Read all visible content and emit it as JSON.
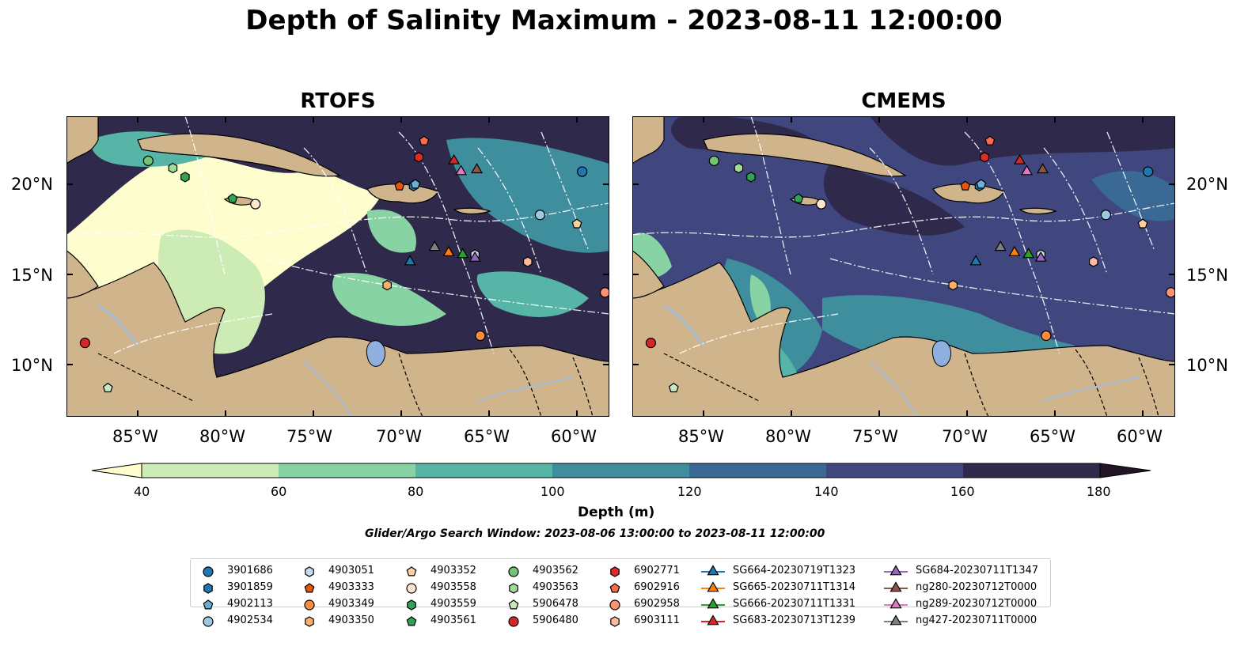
{
  "title": "Depth of Salinity Maximum - 2023-08-11 12:00:00",
  "panels": [
    {
      "title": "RTOFS",
      "model": "rtofs"
    },
    {
      "title": "CMEMS",
      "model": "cmems"
    }
  ],
  "lon_ticks": [
    "85°W",
    "80°W",
    "75°W",
    "70°W",
    "65°W",
    "60°W"
  ],
  "lat_ticks": [
    "20°N",
    "15°N",
    "10°N"
  ],
  "colorbar": {
    "label": "Depth (m)",
    "ticks": [
      "40",
      "60",
      "80",
      "100",
      "120",
      "140",
      "160",
      "180"
    ],
    "colors": [
      "#fdfdcd",
      "#cdebb4",
      "#88d3a4",
      "#56b5a6",
      "#3f8e9e",
      "#3b6995",
      "#40467e",
      "#2f2a4c",
      "#221626"
    ]
  },
  "search_window": "Glider/Argo Search Window: 2023-08-06 13:00:00 to 2023-08-11 12:00:00",
  "map_colors": {
    "land": "#d0b48c",
    "water_body": "#8fb0df",
    "river": "#a6bddb",
    "track": "#ffffff"
  },
  "legend": [
    {
      "label": "3901686",
      "marker": "circle",
      "color": "#1f77b4",
      "lon": -59.7,
      "lat": 20.7
    },
    {
      "label": "3901859",
      "marker": "hexagon",
      "color": "#1f77b4",
      "lon": -69.3,
      "lat": 19.9
    },
    {
      "label": "4902113",
      "marker": "pentagon",
      "color": "#6baed6",
      "lon": -69.2,
      "lat": 20.0
    },
    {
      "label": "4902534",
      "marker": "circle",
      "color": "#9ecae1",
      "lon": -62.1,
      "lat": 18.3
    },
    {
      "label": "4903051",
      "marker": "hexagon",
      "color": "#c6dbef",
      "lon": -65.8,
      "lat": 16.1
    },
    {
      "label": "4903333",
      "marker": "pentagon",
      "color": "#e6550d",
      "lon": -70.1,
      "lat": 19.9
    },
    {
      "label": "4903349",
      "marker": "circle",
      "color": "#fd8d3c",
      "lon": -65.5,
      "lat": 11.6
    },
    {
      "label": "4903350",
      "marker": "hexagon",
      "color": "#fdae6b",
      "lon": -70.8,
      "lat": 14.4
    },
    {
      "label": "4903352",
      "marker": "pentagon",
      "color": "#fdd0a2",
      "lon": -60.0,
      "lat": 17.8
    },
    {
      "label": "4903558",
      "marker": "circle",
      "color": "#fee6ce",
      "lon": -78.3,
      "lat": 18.9
    },
    {
      "label": "4903559",
      "marker": "hexagon",
      "color": "#31a354",
      "lon": -82.3,
      "lat": 20.4
    },
    {
      "label": "4903561",
      "marker": "pentagon",
      "color": "#31a354",
      "lon": -79.6,
      "lat": 19.2
    },
    {
      "label": "4903562",
      "marker": "circle",
      "color": "#74c476",
      "lon": -84.4,
      "lat": 21.3
    },
    {
      "label": "4903563",
      "marker": "hexagon",
      "color": "#a1d99b",
      "lon": -83.0,
      "lat": 20.9
    },
    {
      "label": "5906478",
      "marker": "pentagon",
      "color": "#c7e9c0",
      "lon": -86.7,
      "lat": 8.7
    },
    {
      "label": "5906480",
      "marker": "circle",
      "color": "#d62728",
      "lon": -88.0,
      "lat": 11.2
    },
    {
      "label": "6902771",
      "marker": "hexagon",
      "color": "#de2d26",
      "lon": -69.0,
      "lat": 21.5
    },
    {
      "label": "6902916",
      "marker": "pentagon",
      "color": "#fb6a4a",
      "lon": -68.7,
      "lat": 22.4
    },
    {
      "label": "6902958",
      "marker": "circle",
      "color": "#fc9272",
      "lon": -58.4,
      "lat": 14.0
    },
    {
      "label": "6903111",
      "marker": "hexagon",
      "color": "#fcbba1",
      "lon": -62.8,
      "lat": 15.7
    },
    {
      "label": "SG664-20230719T1323",
      "marker": "triangle",
      "color": "#1f77b4",
      "lon": -69.5,
      "lat": 15.7
    },
    {
      "label": "SG665-20230711T1314",
      "marker": "triangle",
      "color": "#ff7f0e",
      "lon": -67.3,
      "lat": 16.2
    },
    {
      "label": "SG666-20230711T1331",
      "marker": "triangle",
      "color": "#2ca02c",
      "lon": -66.5,
      "lat": 16.1
    },
    {
      "label": "SG683-20230713T1239",
      "marker": "triangle",
      "color": "#d62728",
      "lon": -67.0,
      "lat": 21.3
    },
    {
      "label": "SG684-20230711T1347",
      "marker": "triangle",
      "color": "#9467bd",
      "lon": -65.8,
      "lat": 15.9
    },
    {
      "label": "ng280-20230712T0000",
      "marker": "triangle",
      "color": "#8c564b",
      "lon": -65.7,
      "lat": 20.8
    },
    {
      "label": "ng289-20230712T0000",
      "marker": "triangle",
      "color": "#e377c2",
      "lon": -66.6,
      "lat": 20.7
    },
    {
      "label": "ng427-20230711T0000",
      "marker": "triangle",
      "color": "#7f7f7f",
      "lon": -68.1,
      "lat": 16.5
    }
  ]
}
